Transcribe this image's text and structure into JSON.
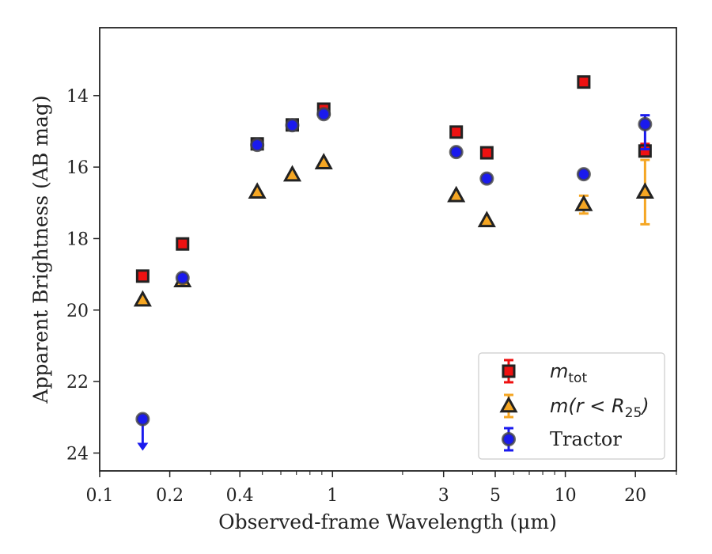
{
  "chart_data": {
    "type": "scatter",
    "title": "",
    "xlabel": "Observed-frame Wavelength (μm)",
    "ylabel": "Apparent Brightness (AB mag)",
    "xscale": "log",
    "xlim": [
      0.1,
      30
    ],
    "ylim": [
      24.5,
      12.1
    ],
    "y_inverted": true,
    "x_ticks": [
      {
        "value": 0.1,
        "label": "0.1"
      },
      {
        "value": 0.2,
        "label": "0.2"
      },
      {
        "value": 0.4,
        "label": "0.4"
      },
      {
        "value": 1,
        "label": "1"
      },
      {
        "value": 3,
        "label": "3"
      },
      {
        "value": 5,
        "label": "5"
      },
      {
        "value": 10,
        "label": "10"
      },
      {
        "value": 20,
        "label": "20"
      }
    ],
    "y_ticks": [
      {
        "value": 14,
        "label": "14"
      },
      {
        "value": 16,
        "label": "16"
      },
      {
        "value": 18,
        "label": "18"
      },
      {
        "value": 20,
        "label": "20"
      },
      {
        "value": 22,
        "label": "22"
      },
      {
        "value": 24,
        "label": "24"
      }
    ],
    "grid": false,
    "legend_position": "bottom-right",
    "series": [
      {
        "name": "m_tot",
        "legend_label": {
          "base": "m",
          "sub": "tot"
        },
        "marker": "square",
        "color": "#ee1111",
        "edge_color": "#222222",
        "points": [
          {
            "x": 0.153,
            "y": 19.05
          },
          {
            "x": 0.227,
            "y": 18.15
          },
          {
            "x": 0.475,
            "y": 15.35
          },
          {
            "x": 0.672,
            "y": 14.82
          },
          {
            "x": 0.917,
            "y": 14.38
          },
          {
            "x": 3.4,
            "y": 15.02
          },
          {
            "x": 4.6,
            "y": 15.6
          },
          {
            "x": 12.0,
            "y": 13.62
          },
          {
            "x": 22.0,
            "y": 15.55,
            "yerr_low": 15.35,
            "yerr_high": 15.7
          }
        ]
      },
      {
        "name": "m(r<R25)",
        "legend_label": {
          "base": "m(r < R",
          "sub": "25",
          "tail": ")"
        },
        "marker": "triangle",
        "color": "#f5a623",
        "edge_color": "#222222",
        "points": [
          {
            "x": 0.153,
            "y": 19.72
          },
          {
            "x": 0.227,
            "y": 19.18
          },
          {
            "x": 0.475,
            "y": 16.7
          },
          {
            "x": 0.672,
            "y": 16.22
          },
          {
            "x": 0.917,
            "y": 15.88
          },
          {
            "x": 3.4,
            "y": 16.8
          },
          {
            "x": 4.6,
            "y": 17.5
          },
          {
            "x": 12.0,
            "y": 17.05,
            "yerr_low": 16.8,
            "yerr_high": 17.3
          },
          {
            "x": 22.0,
            "y": 16.7,
            "yerr_low": 15.8,
            "yerr_high": 17.6
          }
        ]
      },
      {
        "name": "Tractor",
        "legend_label": {
          "base": "Tractor"
        },
        "marker": "circle",
        "color": "#1a1aee",
        "edge_color": "#444444",
        "points": [
          {
            "x": 0.153,
            "y": 23.05,
            "upper_limit": true
          },
          {
            "x": 0.227,
            "y": 19.1
          },
          {
            "x": 0.475,
            "y": 15.38
          },
          {
            "x": 0.672,
            "y": 14.83
          },
          {
            "x": 0.917,
            "y": 14.52
          },
          {
            "x": 3.4,
            "y": 15.58
          },
          {
            "x": 4.6,
            "y": 16.32
          },
          {
            "x": 12.0,
            "y": 16.2
          },
          {
            "x": 22.0,
            "y": 14.8,
            "yerr_low": 14.55,
            "yerr_high": 15.5
          }
        ]
      }
    ]
  }
}
